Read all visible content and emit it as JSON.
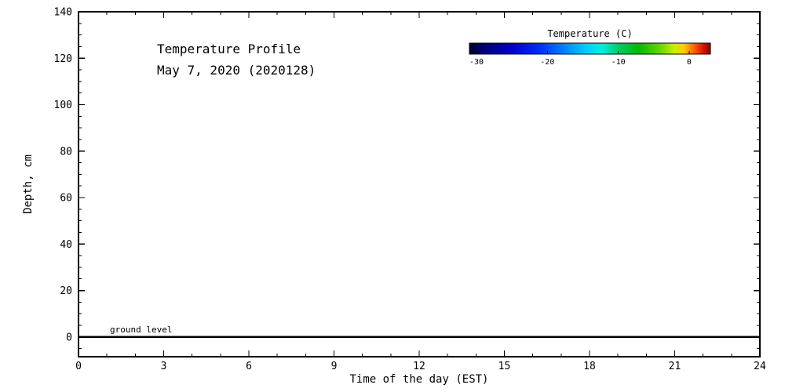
{
  "figure": {
    "background": "#ffffff",
    "foreground": "#000000"
  },
  "chart_data": {
    "type": "heatmap",
    "title": "Temperature Profile",
    "subtitle": "May  7, 2020 (2020128)",
    "xlabel": "Time of the day (EST)",
    "ylabel": "Depth, cm",
    "xlim": [
      0,
      24
    ],
    "xticks": [
      0,
      3,
      6,
      9,
      12,
      15,
      18,
      21,
      24
    ],
    "x_minor_step": 1,
    "ylim": [
      -8.5,
      140
    ],
    "yticks": [
      0,
      20,
      40,
      60,
      80,
      100,
      120,
      140
    ],
    "y_minor_step": 5,
    "grid": false,
    "series": [],
    "annotations": [
      {
        "type": "hline",
        "y": 0,
        "label": "ground level"
      }
    ],
    "colorbar": {
      "title": "Temperature (C)",
      "range": [
        -31,
        3
      ],
      "ticks": [
        -30,
        -20,
        -10,
        0
      ],
      "gradient_stops": [
        {
          "offset": 0.0,
          "color": "#000030"
        },
        {
          "offset": 0.07,
          "color": "#000080"
        },
        {
          "offset": 0.18,
          "color": "#0000cc"
        },
        {
          "offset": 0.3,
          "color": "#0033ff"
        },
        {
          "offset": 0.4,
          "color": "#0088ff"
        },
        {
          "offset": 0.48,
          "color": "#00ccff"
        },
        {
          "offset": 0.55,
          "color": "#00eedd"
        },
        {
          "offset": 0.62,
          "color": "#00cc66"
        },
        {
          "offset": 0.7,
          "color": "#00bb00"
        },
        {
          "offset": 0.79,
          "color": "#66d500"
        },
        {
          "offset": 0.85,
          "color": "#ccee00"
        },
        {
          "offset": 0.89,
          "color": "#ffcc00"
        },
        {
          "offset": 0.93,
          "color": "#ff6600"
        },
        {
          "offset": 0.97,
          "color": "#dd1100"
        },
        {
          "offset": 1.0,
          "color": "#880000"
        }
      ]
    }
  }
}
